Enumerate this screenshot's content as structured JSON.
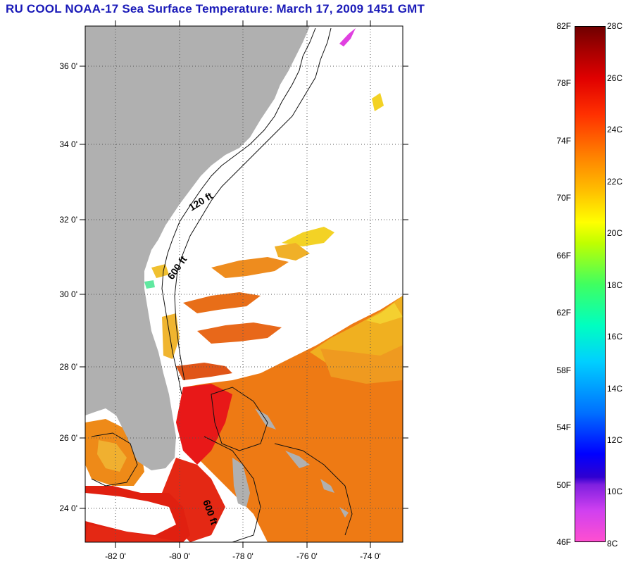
{
  "title": "RU COOL  NOAA-17  Sea Surface Temperature:  March 17, 2009 1451 GMT",
  "map": {
    "lat_ticks": [
      "36 0'",
      "34 0'",
      "32 0'",
      "30 0'",
      "28 0'",
      "26 0'",
      "24 0'"
    ],
    "lon_ticks": [
      "-82 0'",
      "-80 0'",
      "-78 0'",
      "-76 0'",
      "-74 0'"
    ],
    "contours": [
      "120 ft",
      "600 ft",
      "600 ft"
    ],
    "colors": {
      "land": "#b0b0b0",
      "ocean_cloud": "#ffffff",
      "grid": "#555555"
    }
  },
  "colorbar": {
    "fahrenheit": [
      "82F",
      "78F",
      "74F",
      "70F",
      "66F",
      "62F",
      "58F",
      "54F",
      "50F",
      "46F"
    ],
    "celsius": [
      "28C",
      "26C",
      "24C",
      "22C",
      "20C",
      "18C",
      "16C",
      "14C",
      "12C",
      "10C",
      "8C"
    ]
  }
}
